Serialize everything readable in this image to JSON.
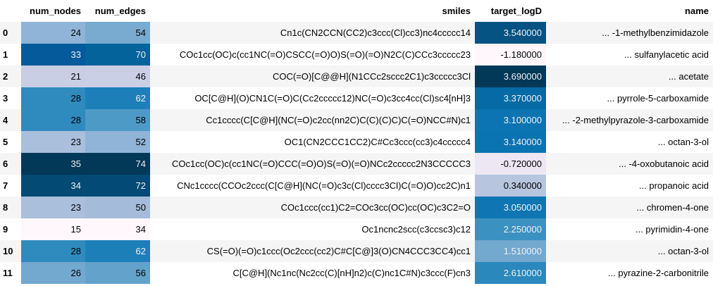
{
  "columns": [
    "num_nodes",
    "num_edges",
    "smiles",
    "target_logD",
    "name"
  ],
  "rows": [
    {
      "index": "0",
      "num_nodes": "24",
      "num_edges": "54",
      "smiles": "Cn1c(CN2CCN(CC2)c3ccc(Cl)cc3)nc4ccccc14",
      "target_logD": "3.540000",
      "name": "... -1-methylbenzimidazole"
    },
    {
      "index": "1",
      "num_nodes": "33",
      "num_edges": "70",
      "smiles": "COc1cc(OC)c(cc1NC(=O)CSCC(=O)O)S(=O)(=O)N2C(C)CCc3ccccc23",
      "target_logD": "-1.180000",
      "name": "... sulfanylacetic acid"
    },
    {
      "index": "2",
      "num_nodes": "21",
      "num_edges": "46",
      "smiles": "COC(=O)[C@@H](N1CCc2sccc2C1)c3ccccc3Cl",
      "target_logD": "3.690000",
      "name": "... acetate"
    },
    {
      "index": "3",
      "num_nodes": "28",
      "num_edges": "62",
      "smiles": "OC[C@H](O)CN1C(=O)C(Cc2ccccc12)NC(=O)c3cc4cc(Cl)sc4[nH]3",
      "target_logD": "3.370000",
      "name": "... pyrrole-5-carboxamide"
    },
    {
      "index": "4",
      "num_nodes": "28",
      "num_edges": "58",
      "smiles": "Cc1cccc(C[C@H](NC(=O)c2cc(nn2C)C(C)(C)C)C(=O)NCC#N)c1",
      "target_logD": "3.100000",
      "name": "... -2-methylpyrazole-3-carboxamide"
    },
    {
      "index": "5",
      "num_nodes": "23",
      "num_edges": "52",
      "smiles": "OC1(CN2CCC1CC2)C#Cc3ccc(cc3)c4ccccc4",
      "target_logD": "3.140000",
      "name": "... octan-3-ol"
    },
    {
      "index": "6",
      "num_nodes": "35",
      "num_edges": "74",
      "smiles": "COc1cc(OC)c(cc1NC(=O)CCC(=O)O)S(=O)(=O)NCc2ccccc2N3CCCCC3",
      "target_logD": "-0.720000",
      "name": "... -4-oxobutanoic acid"
    },
    {
      "index": "7",
      "num_nodes": "34",
      "num_edges": "72",
      "smiles": "CNc1cccc(CCOc2ccc(C[C@H](NC(=O)c3c(Cl)cccc3Cl)C(=O)O)cc2C)n1",
      "target_logD": "0.340000",
      "name": "... propanoic acid"
    },
    {
      "index": "8",
      "num_nodes": "23",
      "num_edges": "50",
      "smiles": "COc1ccc(cc1)C2=COc3cc(OC)cc(OC)c3C2=O",
      "target_logD": "3.050000",
      "name": "... chromen-4-one"
    },
    {
      "index": "9",
      "num_nodes": "15",
      "num_edges": "34",
      "smiles": "Oc1ncnc2scc(c3ccsc3)c12",
      "target_logD": "2.250000",
      "name": "... pyrimidin-4-one"
    },
    {
      "index": "10",
      "num_nodes": "28",
      "num_edges": "62",
      "smiles": "CS(=O)(=O)c1ccc(Oc2ccc(cc2)C#C[C@]3(O)CN4CCC3CC4)cc1",
      "target_logD": "1.510000",
      "name": "... octan-3-ol"
    },
    {
      "index": "11",
      "num_nodes": "26",
      "num_edges": "56",
      "smiles": "C[C@H](Nc1nc(Nc2cc(C)[nH]n2)c(C)nc1C#N)c3ccc(F)cn3",
      "target_logD": "2.610000",
      "name": "... pyrazine-2-carbonitrile"
    }
  ],
  "cell_colors": {
    "num_nodes": [
      {
        "bg": "#8fb4d7",
        "fg": "#000000"
      },
      {
        "bg": "#055a9c",
        "fg": "#f1f1f1"
      },
      {
        "bg": "#c9cee4",
        "fg": "#000000"
      },
      {
        "bg": "#2f8abe",
        "fg": "#000000"
      },
      {
        "bg": "#2f8abe",
        "fg": "#000000"
      },
      {
        "bg": "#a9bfdc",
        "fg": "#000000"
      },
      {
        "bg": "#023858",
        "fg": "#f1f1f1"
      },
      {
        "bg": "#034a74",
        "fg": "#f1f1f1"
      },
      {
        "bg": "#a9bfdc",
        "fg": "#000000"
      },
      {
        "bg": "#fff7fb",
        "fg": "#000000"
      },
      {
        "bg": "#2f8abe",
        "fg": "#000000"
      },
      {
        "bg": "#73a8cf",
        "fg": "#000000"
      }
    ],
    "num_edges": [
      {
        "bg": "#79abd0",
        "fg": "#000000"
      },
      {
        "bg": "#04639b",
        "fg": "#f1f1f1"
      },
      {
        "bg": "#cbcfe5",
        "fg": "#000000"
      },
      {
        "bg": "#1c7fb8",
        "fg": "#f1f1f1"
      },
      {
        "bg": "#4e9ac6",
        "fg": "#000000"
      },
      {
        "bg": "#8fb4d7",
        "fg": "#000000"
      },
      {
        "bg": "#023858",
        "fg": "#f1f1f1"
      },
      {
        "bg": "#034b76",
        "fg": "#f1f1f1"
      },
      {
        "bg": "#a4bcda",
        "fg": "#000000"
      },
      {
        "bg": "#fff7fb",
        "fg": "#000000"
      },
      {
        "bg": "#1c7fb8",
        "fg": "#f1f1f1"
      },
      {
        "bg": "#63a2cb",
        "fg": "#000000"
      }
    ],
    "target_logD": [
      {
        "bg": "#045382",
        "fg": "#f1f1f1"
      },
      {
        "bg": "#fff7fb",
        "fg": "#000000"
      },
      {
        "bg": "#023858",
        "fg": "#f1f1f1"
      },
      {
        "bg": "#056aa6",
        "fg": "#f1f1f1"
      },
      {
        "bg": "#0c74b2",
        "fg": "#f1f1f1"
      },
      {
        "bg": "#0a73b2",
        "fg": "#f1f1f1"
      },
      {
        "bg": "#ece7f2",
        "fg": "#000000"
      },
      {
        "bg": "#b7c5df",
        "fg": "#000000"
      },
      {
        "bg": "#0f76b3",
        "fg": "#f1f1f1"
      },
      {
        "bg": "#3b92c1",
        "fg": "#f1f1f1"
      },
      {
        "bg": "#73a8cf",
        "fg": "#f1f1f1"
      },
      {
        "bg": "#2a88bc",
        "fg": "#f1f1f1"
      }
    ]
  }
}
